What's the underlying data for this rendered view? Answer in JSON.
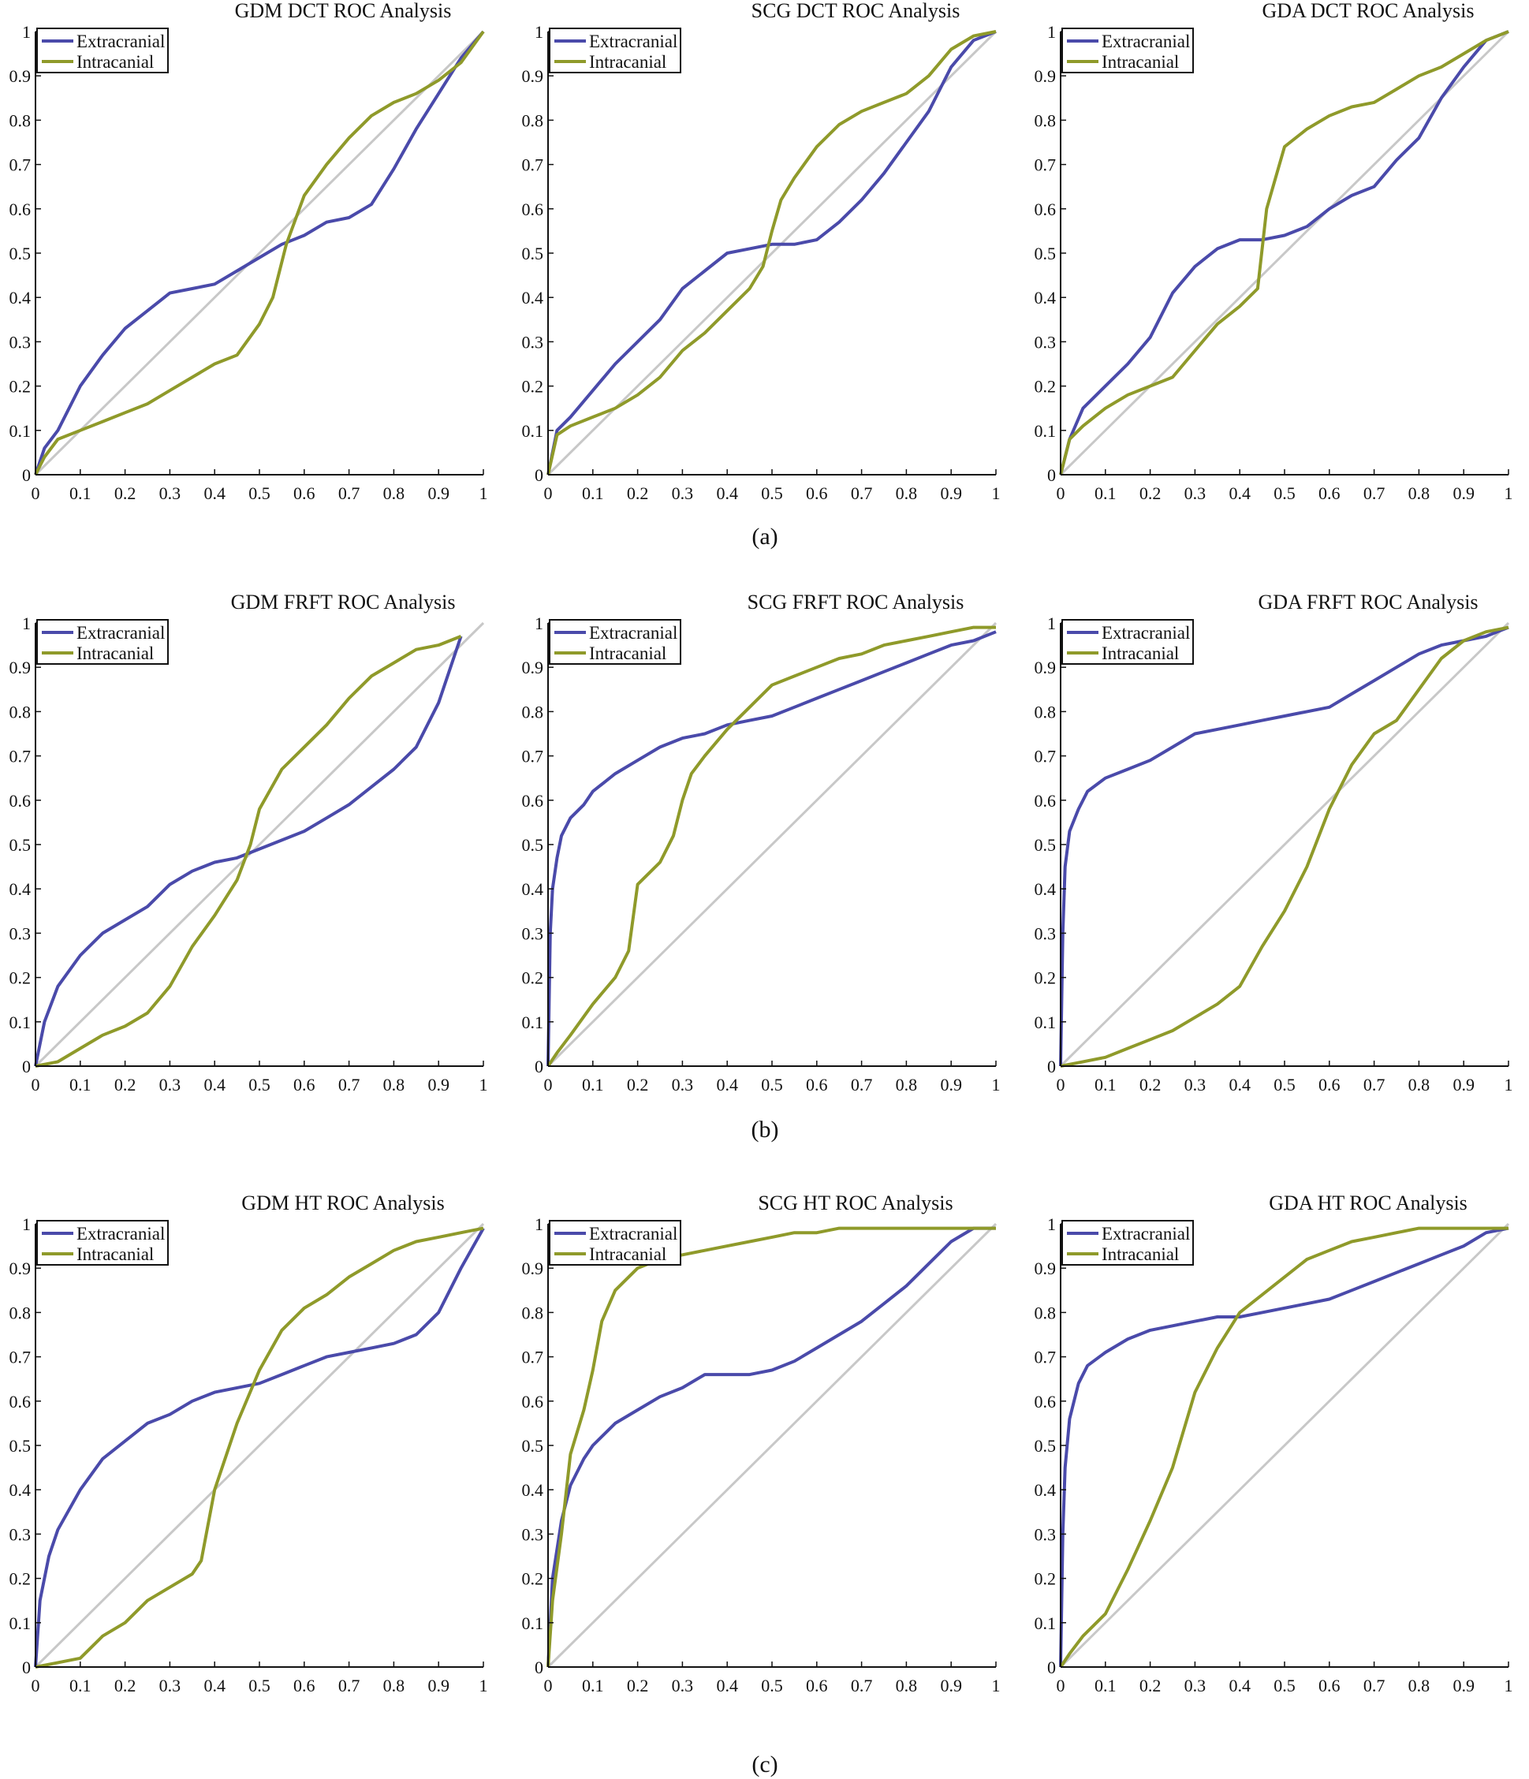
{
  "colors": {
    "extracranial": "#4a4aaa",
    "intracranial": "#8f9a2a",
    "diagonal": "#c8c8c8",
    "axis": "#111111"
  },
  "row_captions": [
    "(a)",
    "(b)",
    "(c)"
  ],
  "axis": {
    "xticks": [
      0,
      0.1,
      0.2,
      0.3,
      0.4,
      0.5,
      0.6,
      0.7,
      0.8,
      0.9,
      1
    ],
    "xtick_labels": [
      "0",
      "0.1",
      "0.2",
      "0.3",
      "0.4",
      "0.5",
      "0.6",
      "0.7",
      "0.8",
      "0.9",
      "1"
    ],
    "yticks": [
      0,
      0.1,
      0.2,
      0.3,
      0.4,
      0.5,
      0.6,
      0.7,
      0.8,
      0.9,
      1
    ],
    "ytick_labels": [
      "0",
      "0.1",
      "0.2",
      "0.3",
      "0.4",
      "0.5",
      "0.6",
      "0.7",
      "0.8",
      "0.9",
      "1"
    ]
  },
  "chart_data": [
    {
      "type": "line",
      "title": "GDM DCT ROC Analysis",
      "xlim": [
        0,
        1
      ],
      "ylim": [
        0,
        1
      ],
      "legend": "top-left",
      "series": [
        {
          "name": "Extracranial",
          "color": "#4a4aaa",
          "x": [
            0,
            0.02,
            0.05,
            0.1,
            0.15,
            0.2,
            0.25,
            0.3,
            0.35,
            0.4,
            0.45,
            0.5,
            0.55,
            0.6,
            0.65,
            0.7,
            0.75,
            0.8,
            0.85,
            0.9,
            0.95,
            1
          ],
          "y": [
            0,
            0.06,
            0.1,
            0.2,
            0.27,
            0.33,
            0.37,
            0.41,
            0.42,
            0.43,
            0.46,
            0.49,
            0.52,
            0.54,
            0.57,
            0.58,
            0.61,
            0.69,
            0.78,
            0.86,
            0.94,
            1
          ]
        },
        {
          "name": "Intracanial",
          "color": "#8f9a2a",
          "x": [
            0,
            0.02,
            0.05,
            0.1,
            0.15,
            0.2,
            0.25,
            0.3,
            0.35,
            0.4,
            0.45,
            0.5,
            0.53,
            0.56,
            0.6,
            0.65,
            0.7,
            0.75,
            0.8,
            0.85,
            0.9,
            0.95,
            1
          ],
          "y": [
            0,
            0.04,
            0.08,
            0.1,
            0.12,
            0.14,
            0.16,
            0.19,
            0.22,
            0.25,
            0.27,
            0.34,
            0.4,
            0.52,
            0.63,
            0.7,
            0.76,
            0.81,
            0.84,
            0.86,
            0.89,
            0.93,
            1
          ]
        }
      ]
    },
    {
      "type": "line",
      "title": "SCG  DCT ROC Analysis",
      "xlim": [
        0,
        1
      ],
      "ylim": [
        0,
        1
      ],
      "legend": "top-left",
      "series": [
        {
          "name": "Extracranial",
          "color": "#4a4aaa",
          "x": [
            0,
            0.02,
            0.05,
            0.1,
            0.15,
            0.2,
            0.25,
            0.3,
            0.35,
            0.4,
            0.45,
            0.5,
            0.55,
            0.6,
            0.65,
            0.7,
            0.75,
            0.8,
            0.85,
            0.9,
            0.95,
            1
          ],
          "y": [
            0,
            0.1,
            0.13,
            0.19,
            0.25,
            0.3,
            0.35,
            0.42,
            0.46,
            0.5,
            0.51,
            0.52,
            0.52,
            0.53,
            0.57,
            0.62,
            0.68,
            0.75,
            0.82,
            0.92,
            0.98,
            1
          ]
        },
        {
          "name": "Intracanial",
          "color": "#8f9a2a",
          "x": [
            0,
            0.02,
            0.05,
            0.1,
            0.15,
            0.2,
            0.25,
            0.3,
            0.35,
            0.4,
            0.45,
            0.48,
            0.5,
            0.52,
            0.55,
            0.6,
            0.65,
            0.7,
            0.75,
            0.8,
            0.85,
            0.9,
            0.95,
            1
          ],
          "y": [
            0,
            0.09,
            0.11,
            0.13,
            0.15,
            0.18,
            0.22,
            0.28,
            0.32,
            0.37,
            0.42,
            0.47,
            0.55,
            0.62,
            0.67,
            0.74,
            0.79,
            0.82,
            0.84,
            0.86,
            0.9,
            0.96,
            0.99,
            1
          ]
        }
      ]
    },
    {
      "type": "line",
      "title": "GDA DCT ROC Analysis",
      "xlim": [
        0,
        1
      ],
      "ylim": [
        0,
        1
      ],
      "legend": "top-left",
      "series": [
        {
          "name": "Extracranial",
          "color": "#4a4aaa",
          "x": [
            0,
            0.02,
            0.05,
            0.1,
            0.15,
            0.2,
            0.25,
            0.3,
            0.35,
            0.4,
            0.45,
            0.5,
            0.55,
            0.6,
            0.65,
            0.7,
            0.75,
            0.8,
            0.85,
            0.9,
            0.95,
            1
          ],
          "y": [
            0,
            0.08,
            0.15,
            0.2,
            0.25,
            0.31,
            0.41,
            0.47,
            0.51,
            0.53,
            0.53,
            0.54,
            0.56,
            0.6,
            0.63,
            0.65,
            0.71,
            0.76,
            0.85,
            0.92,
            0.98,
            1
          ]
        },
        {
          "name": "Intracanial",
          "color": "#8f9a2a",
          "x": [
            0,
            0.02,
            0.05,
            0.1,
            0.15,
            0.2,
            0.25,
            0.3,
            0.35,
            0.4,
            0.44,
            0.46,
            0.5,
            0.55,
            0.6,
            0.65,
            0.7,
            0.75,
            0.8,
            0.85,
            0.9,
            0.95,
            1
          ],
          "y": [
            0,
            0.08,
            0.11,
            0.15,
            0.18,
            0.2,
            0.22,
            0.28,
            0.34,
            0.38,
            0.42,
            0.6,
            0.74,
            0.78,
            0.81,
            0.83,
            0.84,
            0.87,
            0.9,
            0.92,
            0.95,
            0.98,
            1
          ]
        }
      ]
    },
    {
      "type": "line",
      "title": "GDM FRFT ROC Analysis",
      "xlim": [
        0,
        1
      ],
      "ylim": [
        0,
        1
      ],
      "legend": "top-left",
      "series": [
        {
          "name": "Extracranial",
          "color": "#4a4aaa",
          "x": [
            0,
            0.02,
            0.05,
            0.1,
            0.15,
            0.2,
            0.25,
            0.3,
            0.35,
            0.4,
            0.45,
            0.5,
            0.55,
            0.6,
            0.65,
            0.7,
            0.75,
            0.8,
            0.85,
            0.9,
            0.95
          ],
          "y": [
            0,
            0.1,
            0.18,
            0.25,
            0.3,
            0.33,
            0.36,
            0.41,
            0.44,
            0.46,
            0.47,
            0.49,
            0.51,
            0.53,
            0.56,
            0.59,
            0.63,
            0.67,
            0.72,
            0.82,
            0.97
          ]
        },
        {
          "name": "Intracanial",
          "color": "#8f9a2a",
          "x": [
            0,
            0.05,
            0.1,
            0.15,
            0.2,
            0.25,
            0.3,
            0.35,
            0.4,
            0.45,
            0.48,
            0.5,
            0.55,
            0.6,
            0.65,
            0.7,
            0.75,
            0.8,
            0.85,
            0.9,
            0.95
          ],
          "y": [
            0,
            0.01,
            0.04,
            0.07,
            0.09,
            0.12,
            0.18,
            0.27,
            0.34,
            0.42,
            0.5,
            0.58,
            0.67,
            0.72,
            0.77,
            0.83,
            0.88,
            0.91,
            0.94,
            0.95,
            0.97
          ]
        }
      ]
    },
    {
      "type": "line",
      "title": "SCG FRFT ROC Analysis",
      "xlim": [
        0,
        1
      ],
      "ylim": [
        0,
        1
      ],
      "legend": "top-left",
      "series": [
        {
          "name": "Extracranial",
          "color": "#4a4aaa",
          "x": [
            0,
            0.005,
            0.01,
            0.02,
            0.03,
            0.05,
            0.08,
            0.1,
            0.15,
            0.2,
            0.25,
            0.3,
            0.35,
            0.4,
            0.45,
            0.5,
            0.55,
            0.6,
            0.65,
            0.7,
            0.75,
            0.8,
            0.85,
            0.9,
            0.95,
            1
          ],
          "y": [
            0,
            0.3,
            0.4,
            0.47,
            0.52,
            0.56,
            0.59,
            0.62,
            0.66,
            0.69,
            0.72,
            0.74,
            0.75,
            0.77,
            0.78,
            0.79,
            0.81,
            0.83,
            0.85,
            0.87,
            0.89,
            0.91,
            0.93,
            0.95,
            0.96,
            0.98
          ]
        },
        {
          "name": "Intracanial",
          "color": "#8f9a2a",
          "x": [
            0,
            0.02,
            0.05,
            0.1,
            0.15,
            0.18,
            0.2,
            0.22,
            0.25,
            0.28,
            0.3,
            0.32,
            0.35,
            0.4,
            0.45,
            0.5,
            0.55,
            0.6,
            0.65,
            0.7,
            0.75,
            0.8,
            0.85,
            0.9,
            0.95,
            1
          ],
          "y": [
            0,
            0.03,
            0.07,
            0.14,
            0.2,
            0.26,
            0.41,
            0.43,
            0.46,
            0.52,
            0.6,
            0.66,
            0.7,
            0.76,
            0.81,
            0.86,
            0.88,
            0.9,
            0.92,
            0.93,
            0.95,
            0.96,
            0.97,
            0.98,
            0.99,
            0.99
          ]
        }
      ]
    },
    {
      "type": "line",
      "title": "GDA FRFT ROC Analysis",
      "xlim": [
        0,
        1
      ],
      "ylim": [
        0,
        1
      ],
      "legend": "top-left",
      "series": [
        {
          "name": "Extracranial",
          "color": "#4a4aaa",
          "x": [
            0,
            0.005,
            0.01,
            0.02,
            0.04,
            0.06,
            0.1,
            0.15,
            0.2,
            0.25,
            0.3,
            0.35,
            0.4,
            0.45,
            0.5,
            0.55,
            0.6,
            0.65,
            0.7,
            0.75,
            0.8,
            0.85,
            0.9,
            0.95,
            1
          ],
          "y": [
            0,
            0.3,
            0.45,
            0.53,
            0.58,
            0.62,
            0.65,
            0.67,
            0.69,
            0.72,
            0.75,
            0.76,
            0.77,
            0.78,
            0.79,
            0.8,
            0.81,
            0.84,
            0.87,
            0.9,
            0.93,
            0.95,
            0.96,
            0.97,
            0.99
          ]
        },
        {
          "name": "Intracanial",
          "color": "#8f9a2a",
          "x": [
            0,
            0.05,
            0.1,
            0.15,
            0.2,
            0.25,
            0.3,
            0.35,
            0.4,
            0.45,
            0.5,
            0.55,
            0.6,
            0.65,
            0.7,
            0.75,
            0.8,
            0.85,
            0.9,
            0.95,
            1
          ],
          "y": [
            0,
            0.01,
            0.02,
            0.04,
            0.06,
            0.08,
            0.11,
            0.14,
            0.18,
            0.27,
            0.35,
            0.45,
            0.58,
            0.68,
            0.75,
            0.78,
            0.85,
            0.92,
            0.96,
            0.98,
            0.99
          ]
        }
      ]
    },
    {
      "type": "line",
      "title": "GDM HT ROC Analysis",
      "xlim": [
        0,
        1
      ],
      "ylim": [
        0,
        1
      ],
      "legend": "top-left",
      "series": [
        {
          "name": "Extracranial",
          "color": "#4a4aaa",
          "x": [
            0,
            0.01,
            0.03,
            0.05,
            0.1,
            0.15,
            0.2,
            0.25,
            0.3,
            0.35,
            0.4,
            0.45,
            0.5,
            0.55,
            0.6,
            0.65,
            0.7,
            0.75,
            0.8,
            0.85,
            0.9,
            0.95,
            1
          ],
          "y": [
            0,
            0.15,
            0.25,
            0.31,
            0.4,
            0.47,
            0.51,
            0.55,
            0.57,
            0.6,
            0.62,
            0.63,
            0.64,
            0.66,
            0.68,
            0.7,
            0.71,
            0.72,
            0.73,
            0.75,
            0.8,
            0.9,
            0.99
          ]
        },
        {
          "name": "Intracanial",
          "color": "#8f9a2a",
          "x": [
            0,
            0.05,
            0.1,
            0.15,
            0.2,
            0.25,
            0.3,
            0.35,
            0.37,
            0.4,
            0.45,
            0.5,
            0.55,
            0.6,
            0.65,
            0.7,
            0.75,
            0.8,
            0.85,
            0.9,
            0.95,
            1
          ],
          "y": [
            0,
            0.01,
            0.02,
            0.07,
            0.1,
            0.15,
            0.18,
            0.21,
            0.24,
            0.4,
            0.55,
            0.67,
            0.76,
            0.81,
            0.84,
            0.88,
            0.91,
            0.94,
            0.96,
            0.97,
            0.98,
            0.99
          ]
        }
      ]
    },
    {
      "type": "line",
      "title": "SCG HT ROC Analysis",
      "xlim": [
        0,
        1
      ],
      "ylim": [
        0,
        1
      ],
      "legend": "top-left",
      "series": [
        {
          "name": "Extracranial",
          "color": "#4a4aaa",
          "x": [
            0,
            0.01,
            0.03,
            0.05,
            0.08,
            0.1,
            0.15,
            0.2,
            0.25,
            0.3,
            0.35,
            0.4,
            0.45,
            0.5,
            0.55,
            0.6,
            0.65,
            0.7,
            0.75,
            0.8,
            0.85,
            0.9,
            0.95,
            1
          ],
          "y": [
            0,
            0.2,
            0.33,
            0.41,
            0.47,
            0.5,
            0.55,
            0.58,
            0.61,
            0.63,
            0.66,
            0.66,
            0.66,
            0.67,
            0.69,
            0.72,
            0.75,
            0.78,
            0.82,
            0.86,
            0.91,
            0.96,
            0.99,
            0.99
          ]
        },
        {
          "name": "Intracanial",
          "color": "#8f9a2a",
          "x": [
            0,
            0.01,
            0.03,
            0.05,
            0.08,
            0.1,
            0.12,
            0.15,
            0.2,
            0.25,
            0.3,
            0.35,
            0.4,
            0.45,
            0.5,
            0.55,
            0.6,
            0.65,
            0.7,
            0.75,
            0.8,
            0.85,
            0.9,
            0.95,
            1
          ],
          "y": [
            0,
            0.15,
            0.3,
            0.48,
            0.58,
            0.67,
            0.78,
            0.85,
            0.9,
            0.92,
            0.93,
            0.94,
            0.95,
            0.96,
            0.97,
            0.98,
            0.98,
            0.99,
            0.99,
            0.99,
            0.99,
            0.99,
            0.99,
            0.99,
            0.99
          ]
        }
      ]
    },
    {
      "type": "line",
      "title": "GDA HT ROC Analysis",
      "xlim": [
        0,
        1
      ],
      "ylim": [
        0,
        1
      ],
      "legend": "top-left",
      "series": [
        {
          "name": "Extracranial",
          "color": "#4a4aaa",
          "x": [
            0,
            0.005,
            0.01,
            0.02,
            0.04,
            0.06,
            0.1,
            0.15,
            0.2,
            0.25,
            0.3,
            0.35,
            0.4,
            0.45,
            0.5,
            0.55,
            0.6,
            0.65,
            0.7,
            0.75,
            0.8,
            0.85,
            0.9,
            0.95,
            1
          ],
          "y": [
            0,
            0.3,
            0.45,
            0.56,
            0.64,
            0.68,
            0.71,
            0.74,
            0.76,
            0.77,
            0.78,
            0.79,
            0.79,
            0.8,
            0.81,
            0.82,
            0.83,
            0.85,
            0.87,
            0.89,
            0.91,
            0.93,
            0.95,
            0.98,
            0.99
          ]
        },
        {
          "name": "Intracanial",
          "color": "#8f9a2a",
          "x": [
            0,
            0.02,
            0.05,
            0.1,
            0.15,
            0.2,
            0.25,
            0.3,
            0.35,
            0.4,
            0.45,
            0.5,
            0.55,
            0.6,
            0.65,
            0.7,
            0.75,
            0.8,
            0.85,
            0.9,
            0.95,
            1
          ],
          "y": [
            0,
            0.03,
            0.07,
            0.12,
            0.22,
            0.33,
            0.45,
            0.62,
            0.72,
            0.8,
            0.84,
            0.88,
            0.92,
            0.94,
            0.96,
            0.97,
            0.98,
            0.99,
            0.99,
            0.99,
            0.99,
            0.99
          ]
        }
      ]
    }
  ]
}
